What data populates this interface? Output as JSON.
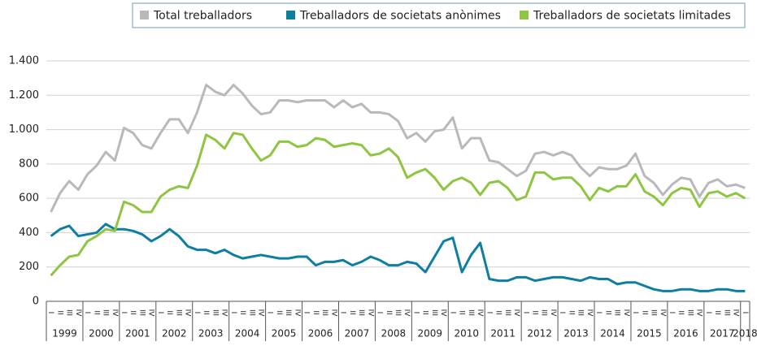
{
  "chart_data": {
    "type": "line",
    "categories": [
      "I",
      "II",
      "III",
      "IV",
      "I",
      "II",
      "III",
      "IV",
      "I",
      "II",
      "III",
      "IV",
      "I",
      "II",
      "III",
      "IV",
      "I",
      "II",
      "III",
      "IV",
      "I",
      "II",
      "III",
      "IV",
      "I",
      "II",
      "III",
      "IV",
      "I",
      "II",
      "III",
      "IV",
      "I",
      "II",
      "III",
      "IV",
      "I",
      "II",
      "III",
      "IV",
      "I",
      "II",
      "III",
      "IV",
      "I",
      "II",
      "III",
      "IV",
      "I",
      "II",
      "III",
      "IV",
      "I",
      "II",
      "III",
      "IV",
      "I",
      "II",
      "III",
      "IV",
      "I",
      "II",
      "III",
      "IV",
      "I",
      "II",
      "III",
      "IV",
      "I",
      "II",
      "III",
      "IV",
      "I",
      "II",
      "III",
      "IV",
      "I"
    ],
    "years": [
      "1999",
      "2000",
      "2001",
      "2002",
      "2003",
      "2004",
      "2005",
      "2006",
      "2007",
      "2008",
      "2009",
      "2010",
      "2011",
      "2012",
      "2013",
      "2014",
      "2015",
      "2016",
      "2017",
      "2018"
    ],
    "series": [
      {
        "name": "Total treballadors",
        "color": "#b9b9bd",
        "values": [
          520,
          630,
          700,
          650,
          740,
          790,
          870,
          820,
          1010,
          980,
          910,
          890,
          980,
          1060,
          1060,
          980,
          1100,
          1260,
          1220,
          1200,
          1260,
          1210,
          1140,
          1090,
          1100,
          1170,
          1170,
          1160,
          1170,
          1170,
          1170,
          1130,
          1170,
          1130,
          1150,
          1100,
          1100,
          1090,
          1050,
          950,
          980,
          930,
          990,
          1000,
          1070,
          890,
          950,
          950,
          820,
          810,
          770,
          730,
          760,
          860,
          870,
          850,
          870,
          850,
          780,
          730,
          780,
          770,
          770,
          790,
          860,
          730,
          690,
          620,
          680,
          720,
          710,
          610,
          690,
          710,
          670,
          680,
          660
        ]
      },
      {
        "name": "Treballadors de societats anònimes",
        "color": "#0e7fa1",
        "values": [
          380,
          420,
          440,
          380,
          390,
          400,
          450,
          420,
          420,
          410,
          390,
          350,
          380,
          420,
          380,
          320,
          300,
          300,
          280,
          300,
          270,
          250,
          260,
          270,
          260,
          250,
          250,
          260,
          260,
          210,
          230,
          230,
          240,
          210,
          230,
          260,
          240,
          210,
          210,
          230,
          220,
          170,
          260,
          350,
          370,
          170,
          270,
          340,
          130,
          120,
          120,
          140,
          140,
          120,
          130,
          140,
          140,
          130,
          120,
          140,
          130,
          130,
          100,
          110,
          110,
          90,
          70,
          60,
          60,
          70,
          70,
          60,
          60,
          70,
          70,
          60,
          60
        ]
      },
      {
        "name": "Treballadors de societats limitades",
        "color": "#8ec641",
        "values": [
          150,
          210,
          260,
          270,
          350,
          380,
          420,
          410,
          580,
          560,
          520,
          520,
          610,
          650,
          670,
          660,
          790,
          970,
          940,
          890,
          980,
          970,
          890,
          820,
          850,
          930,
          930,
          900,
          910,
          950,
          940,
          900,
          910,
          920,
          910,
          850,
          860,
          890,
          840,
          720,
          750,
          770,
          720,
          650,
          700,
          720,
          690,
          620,
          690,
          700,
          660,
          590,
          610,
          750,
          750,
          710,
          720,
          720,
          670,
          590,
          660,
          640,
          670,
          670,
          740,
          640,
          610,
          560,
          630,
          660,
          650,
          550,
          630,
          640,
          610,
          630,
          600
        ]
      }
    ],
    "ylim": [
      0,
      1400
    ],
    "yticks": [
      0,
      200,
      400,
      600,
      800,
      {
        "value": 1000,
        "label": "1.000"
      },
      {
        "value": 1200,
        "label": "1.200"
      },
      {
        "value": 1400,
        "label": "1.400"
      }
    ],
    "grid": true
  }
}
